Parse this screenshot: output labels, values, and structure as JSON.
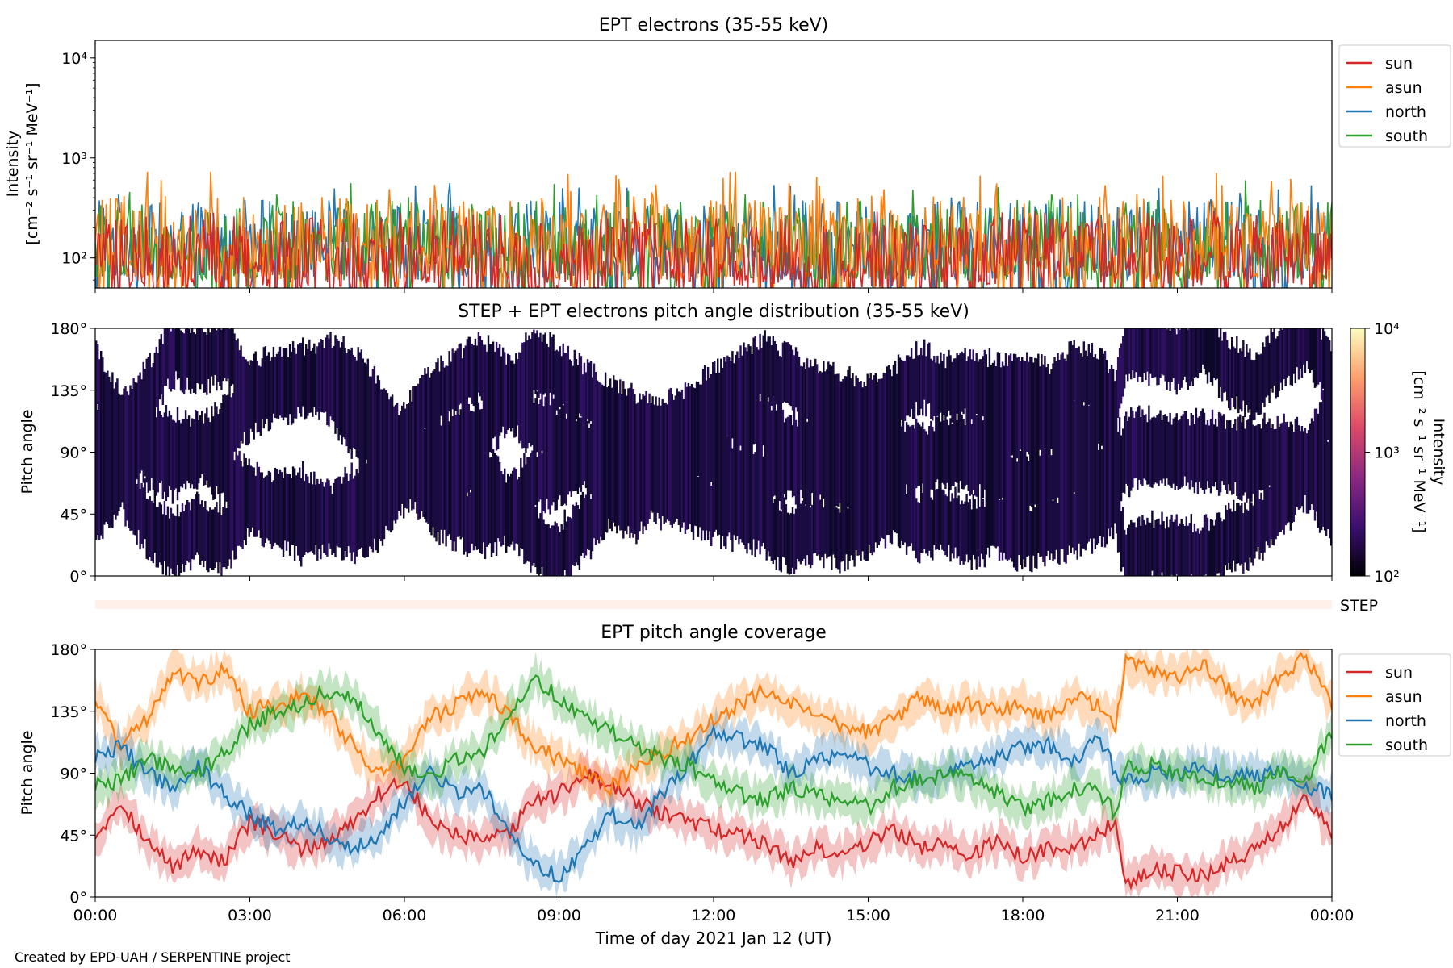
{
  "figure": {
    "credit": "Created by EPD-UAH / SERPENTINE project",
    "xlabel": "Time of day 2021 Jan 12 (UT)",
    "xticks": [
      "00:00",
      "03:00",
      "06:00",
      "09:00",
      "12:00",
      "15:00",
      "18:00",
      "21:00",
      "00:00"
    ]
  },
  "chart_data": [
    {
      "type": "line",
      "title": "EPT electrons (35-55 keV)",
      "ylabel_line1": "Intensity",
      "ylabel_line2": "[cm⁻² s⁻¹ sr⁻¹ MeV⁻¹]",
      "yscale": "log",
      "ylim": [
        50,
        15000
      ],
      "yticks": [
        {
          "value": 100,
          "label": "10²"
        },
        {
          "value": 1000,
          "label": "10³"
        },
        {
          "value": 10000,
          "label": "10⁴"
        }
      ],
      "x_range_hours": [
        0,
        24
      ],
      "legend_position": "right",
      "series": [
        {
          "name": "sun",
          "color": "#d62728",
          "typical_range": [
            50,
            260
          ],
          "peak": 300
        },
        {
          "name": "asun",
          "color": "#ff7f0e",
          "typical_range": [
            60,
            420
          ],
          "peak": 750
        },
        {
          "name": "north",
          "color": "#1f77b4",
          "typical_range": [
            60,
            380
          ],
          "peak": 560
        },
        {
          "name": "south",
          "color": "#2ca02c",
          "typical_range": [
            60,
            380
          ],
          "peak": 620
        }
      ],
      "note_visible": "dense noisy intensity time series across full day"
    },
    {
      "type": "heatmap",
      "title": "STEP + EPT electrons pitch angle distribution (35-55 keV)",
      "ylabel": "Pitch angle",
      "ylim": [
        0,
        180
      ],
      "yticks": [
        "0°",
        "45°",
        "90°",
        "135°",
        "180°"
      ],
      "colorbar": {
        "label_line1": "Intensity",
        "label_line2": "[cm⁻² s⁻¹ sr⁻¹ MeV⁻¹]",
        "scale": "log",
        "range": [
          100,
          10000
        ],
        "ticks": [
          {
            "value": 100,
            "label": "10²"
          },
          {
            "value": 1000,
            "label": "10³"
          },
          {
            "value": 10000,
            "label": "10⁴"
          }
        ],
        "colormap": [
          "#000004",
          "#3b0f70",
          "#8c2981",
          "#de4968",
          "#fe9f6d",
          "#fcfdbf"
        ]
      },
      "dominant_value": 120
    },
    {
      "type": "strip",
      "label": "STEP",
      "color": "#fff0ea"
    },
    {
      "type": "line",
      "title": "EPT pitch angle coverage",
      "ylabel": "Pitch angle",
      "ylim": [
        0,
        180
      ],
      "yticks": [
        "0°",
        "45°",
        "90°",
        "135°",
        "180°"
      ],
      "legend_position": "right",
      "band_half_width_deg": 12,
      "series": [
        {
          "name": "sun",
          "color": "#d62728",
          "x": [
            0,
            0.5,
            1,
            1.5,
            2,
            2.5,
            3,
            3.5,
            4,
            4.5,
            5,
            5.5,
            6,
            6.5,
            7,
            7.5,
            8,
            8.5,
            9,
            9.5,
            10,
            10.5,
            11,
            11.5,
            12,
            12.5,
            13,
            13.5,
            14,
            14.5,
            15,
            15.5,
            16,
            16.5,
            17,
            17.5,
            18,
            18.5,
            19,
            19.5,
            19.8,
            20,
            20.5,
            21,
            21.5,
            22,
            22.5,
            23,
            23.5,
            24
          ],
          "y": [
            45,
            70,
            40,
            22,
            35,
            25,
            55,
            45,
            35,
            40,
            55,
            75,
            85,
            55,
            45,
            40,
            45,
            70,
            75,
            90,
            80,
            70,
            60,
            55,
            50,
            45,
            40,
            25,
            35,
            30,
            40,
            50,
            35,
            40,
            30,
            40,
            30,
            35,
            38,
            45,
            55,
            10,
            20,
            18,
            15,
            25,
            35,
            50,
            75,
            45
          ]
        },
        {
          "name": "asun",
          "color": "#ff7f0e",
          "x": [
            0,
            0.5,
            1,
            1.5,
            2,
            2.5,
            3,
            3.5,
            4,
            4.5,
            5,
            5.5,
            6,
            6.5,
            7,
            7.5,
            8,
            8.5,
            9,
            9.5,
            10,
            10.5,
            11,
            11.5,
            12,
            12.5,
            13,
            13.5,
            14,
            14.5,
            15,
            15.5,
            16,
            16.5,
            17,
            17.5,
            18,
            18.5,
            19,
            19.5,
            19.8,
            20,
            20.5,
            21,
            21.5,
            22,
            22.5,
            23,
            23.5,
            24
          ],
          "y": [
            145,
            110,
            130,
            165,
            155,
            165,
            135,
            140,
            145,
            135,
            110,
            90,
            100,
            130,
            140,
            150,
            135,
            110,
            100,
            90,
            80,
            95,
            105,
            115,
            130,
            140,
            150,
            140,
            130,
            125,
            120,
            130,
            145,
            135,
            140,
            135,
            140,
            130,
            145,
            140,
            125,
            170,
            165,
            160,
            170,
            150,
            140,
            160,
            175,
            140
          ]
        },
        {
          "name": "north",
          "color": "#1f77b4",
          "x": [
            0,
            0.5,
            1,
            1.5,
            2,
            2.5,
            3,
            3.5,
            4,
            4.5,
            5,
            5.5,
            6,
            6.5,
            7,
            7.5,
            8,
            8.5,
            9,
            9.5,
            10,
            10.5,
            11,
            11.5,
            12,
            12.5,
            13,
            13.5,
            14,
            14.5,
            15,
            15.5,
            16,
            16.5,
            17,
            17.5,
            18,
            18.5,
            19,
            19.5,
            19.8,
            20,
            20.5,
            21,
            21.5,
            22,
            22.5,
            23,
            23.5,
            24
          ],
          "y": [
            100,
            110,
            90,
            80,
            95,
            75,
            60,
            50,
            55,
            45,
            35,
            45,
            70,
            90,
            75,
            80,
            50,
            25,
            15,
            35,
            60,
            50,
            75,
            95,
            120,
            115,
            110,
            90,
            100,
            105,
            95,
            90,
            85,
            90,
            95,
            100,
            110,
            110,
            100,
            115,
            90,
            85,
            90,
            90,
            95,
            88,
            90,
            90,
            80,
            75
          ]
        },
        {
          "name": "south",
          "color": "#2ca02c",
          "x": [
            0,
            0.5,
            1,
            1.5,
            2,
            2.5,
            3,
            3.5,
            4,
            4.5,
            5,
            5.5,
            6,
            6.5,
            7,
            7.5,
            8,
            8.5,
            9,
            9.5,
            10,
            10.5,
            11,
            11.5,
            12,
            12.5,
            13,
            13.5,
            14,
            14.5,
            15,
            15.5,
            16,
            16.5,
            17,
            17.5,
            18,
            18.5,
            19,
            19.5,
            19.8,
            20,
            20.5,
            21,
            21.5,
            22,
            22.5,
            23,
            23.5,
            24
          ],
          "y": [
            80,
            85,
            100,
            95,
            90,
            105,
            125,
            135,
            140,
            150,
            145,
            120,
            95,
            85,
            100,
            105,
            130,
            160,
            145,
            130,
            120,
            110,
            100,
            95,
            85,
            75,
            70,
            80,
            75,
            70,
            65,
            80,
            85,
            90,
            85,
            75,
            65,
            70,
            80,
            75,
            60,
            95,
            95,
            90,
            85,
            85,
            80,
            90,
            85,
            120
          ]
        }
      ]
    }
  ]
}
